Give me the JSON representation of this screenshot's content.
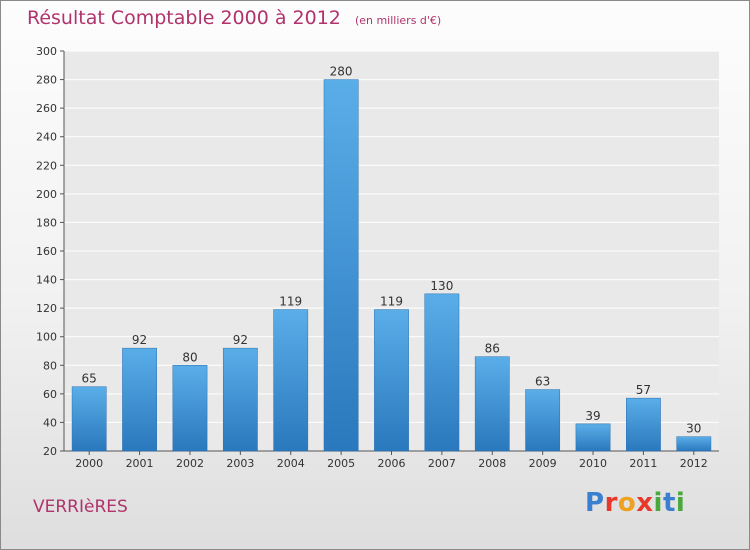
{
  "header": {
    "title": "Résultat Comptable 2000 à 2012",
    "unit": "(en milliers d'€)"
  },
  "footer": {
    "place": "VERRIèRES",
    "logo": "Proxiti"
  },
  "colors": {
    "bar": "#3b8fd6",
    "title": "#b0336b",
    "logo_letters": [
      "#3a7fd0",
      "#e8382b",
      "#f0a020",
      "#e8382b",
      "#47a83c",
      "#3a7fd0",
      "#47a83c"
    ]
  },
  "chart_data": {
    "type": "bar",
    "categories": [
      "2000",
      "2001",
      "2002",
      "2003",
      "2004",
      "2005",
      "2006",
      "2007",
      "2008",
      "2009",
      "2010",
      "2011",
      "2012"
    ],
    "values": [
      65,
      92,
      80,
      92,
      119,
      280,
      119,
      130,
      86,
      63,
      39,
      57,
      30
    ],
    "ylim": [
      20,
      300
    ],
    "yticks": [
      20,
      40,
      60,
      80,
      100,
      120,
      140,
      160,
      180,
      200,
      220,
      240,
      260,
      280,
      300
    ],
    "grid": true,
    "data_labels": true,
    "xlabel": "",
    "ylabel": ""
  }
}
